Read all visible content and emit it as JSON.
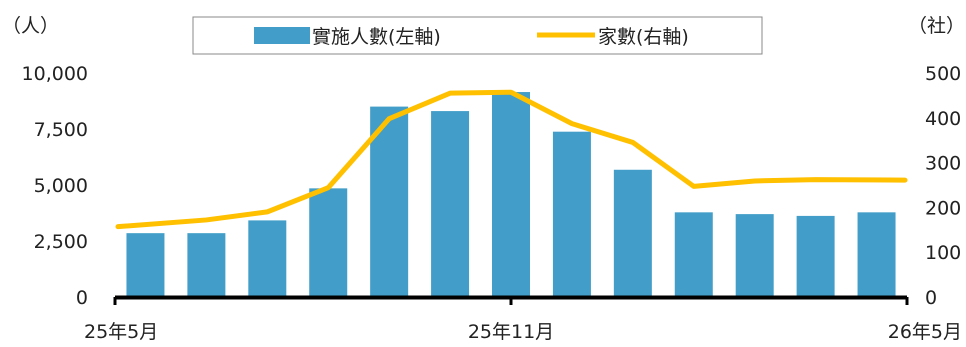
{
  "chart_data": {
    "type": "bar",
    "categories": [
      "25年5月",
      "",
      "",
      "",
      "",
      "",
      "25年11月",
      "",
      "",
      "",
      "",
      "",
      "26年5月"
    ],
    "series": [
      {
        "name": "實施人數(左軸)",
        "type": "bar",
        "axis": "left",
        "color": "#429ec8",
        "values": [
          2850,
          2850,
          3420,
          4850,
          8500,
          8300,
          9150,
          7380,
          5680,
          3780,
          3700,
          3620,
          3780
        ]
      },
      {
        "name": "家數(右軸)",
        "type": "line",
        "axis": "right",
        "color": "#ffc000",
        "values": [
          157,
          172,
          190,
          244,
          398,
          455,
          457,
          387,
          345,
          247,
          259,
          262,
          261
        ]
      }
    ],
    "left_axis": {
      "unit": "（人）",
      "min": 0,
      "max": 10000,
      "ticks": [
        "0",
        "2,500",
        "5,000",
        "7,500",
        "10,000"
      ]
    },
    "right_axis": {
      "unit": "（社）",
      "min": 0,
      "max": 500,
      "ticks": [
        "0",
        "100",
        "200",
        "300",
        "400",
        "500"
      ]
    },
    "x_labels": [
      "25年5月",
      "25年11月",
      "26年5月"
    ],
    "legend_position": "top-center",
    "grid": false
  }
}
